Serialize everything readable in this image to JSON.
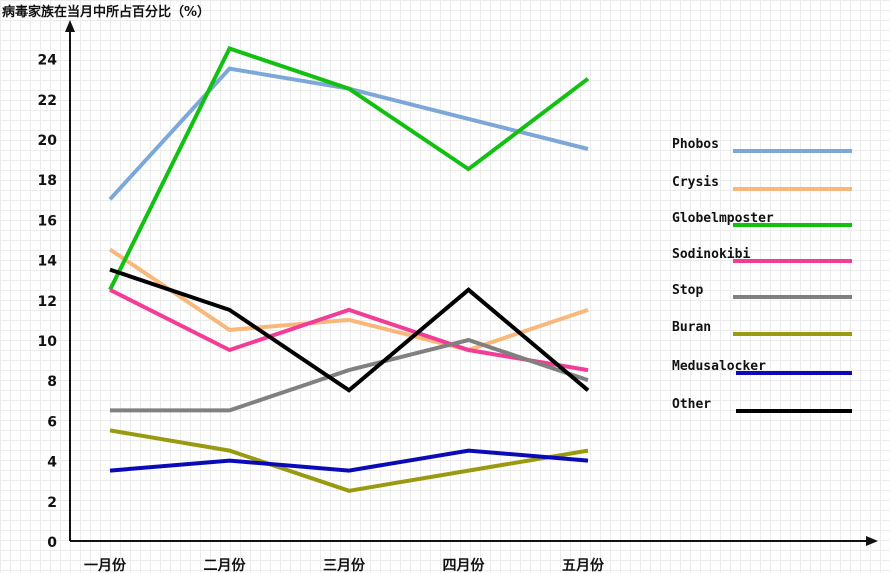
{
  "chart_data": {
    "type": "line",
    "title": "",
    "ylabel": "病毒家族在当月中所占百分比（%）",
    "xlabel": "",
    "categories": [
      "一月份",
      "二月份",
      "三月份",
      "四月份",
      "五月份"
    ],
    "ylim": [
      0,
      24
    ],
    "yticks": [
      0,
      2,
      4,
      6,
      8,
      10,
      12,
      14,
      16,
      18,
      20,
      22,
      24
    ],
    "grid": true,
    "legend": "right",
    "series": [
      {
        "name": "Phobos",
        "color": "#7da7d9",
        "values": [
          17,
          23.5,
          22.5,
          21,
          19.5
        ]
      },
      {
        "name": "Crysis",
        "color": "#f9b77a",
        "values": [
          14.5,
          10.5,
          11,
          9.5,
          11.5
        ]
      },
      {
        "name": "Globelmposter",
        "color": "#12c012",
        "values": [
          12.5,
          24.5,
          22.5,
          18.5,
          23
        ]
      },
      {
        "name": "Sodinokibi",
        "color": "#f23c96",
        "values": [
          12.5,
          9.5,
          11.5,
          9.5,
          8.5
        ]
      },
      {
        "name": "Stop",
        "color": "#808080",
        "values": [
          6.5,
          6.5,
          8.5,
          10,
          8
        ]
      },
      {
        "name": "Buran",
        "color": "#9a9a10",
        "values": [
          5.5,
          4.5,
          2.5,
          3.5,
          4.5
        ]
      },
      {
        "name": "Medusalocker",
        "color": "#0a0ab8",
        "values": [
          3.5,
          4,
          3.5,
          4.5,
          4
        ]
      },
      {
        "name": "Other",
        "color": "#000000",
        "values": [
          13.5,
          11.5,
          7.5,
          12.5,
          7.5
        ]
      }
    ]
  }
}
